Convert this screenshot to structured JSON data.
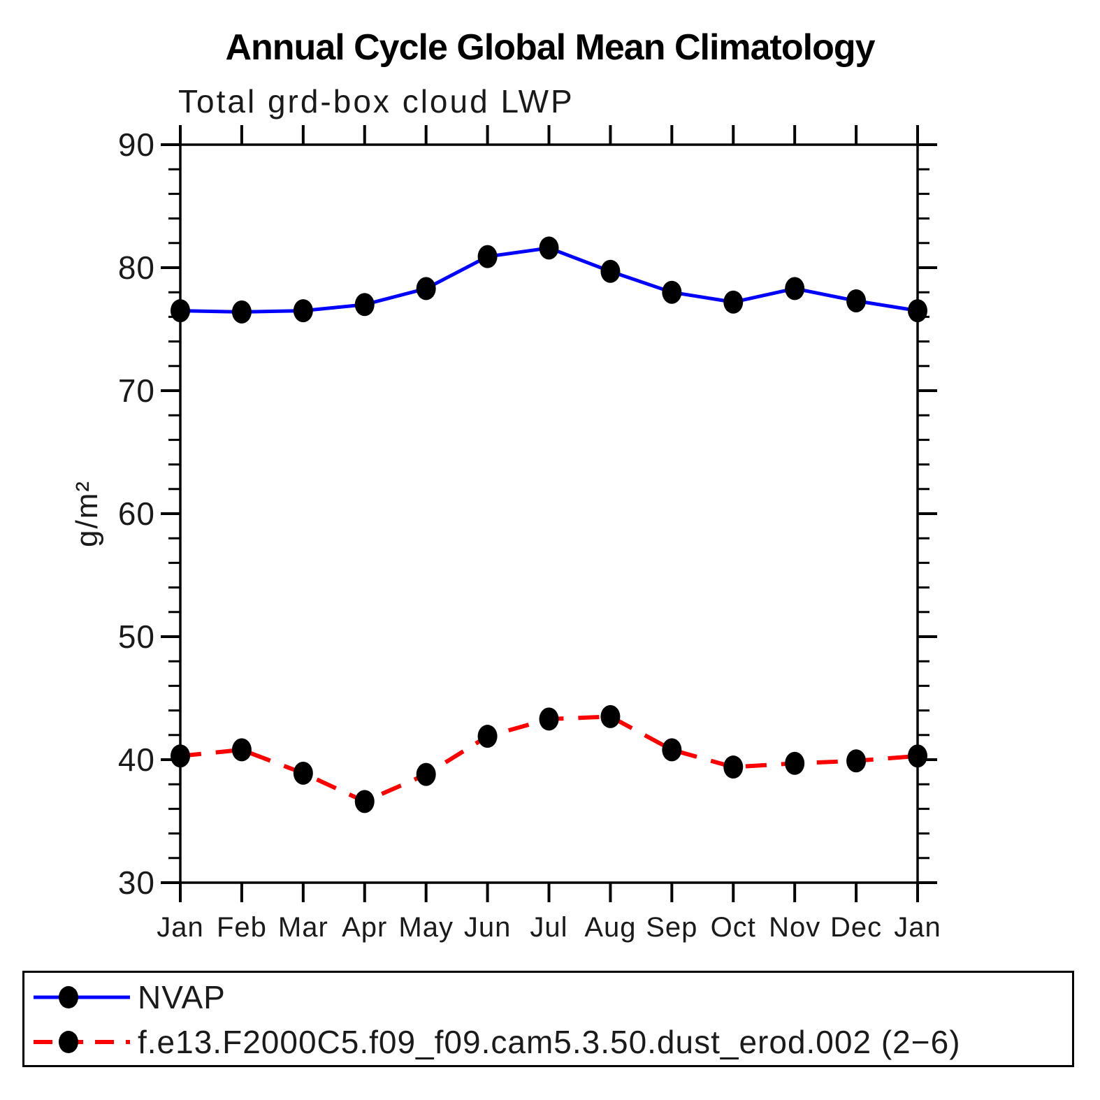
{
  "page": {
    "background": "#ffffff",
    "text_color": "#000000"
  },
  "chart_data": {
    "type": "line",
    "title": "Annual Cycle Global Mean Climatology",
    "subtitle": "Total grd-box cloud LWP",
    "ylabel": "g/m²",
    "categories": [
      "Jan",
      "Feb",
      "Mar",
      "Apr",
      "May",
      "Jun",
      "Jul",
      "Aug",
      "Sep",
      "Oct",
      "Nov",
      "Dec",
      "Jan"
    ],
    "ylim": [
      30,
      90
    ],
    "ytick_major": 10,
    "ytick_minor": 2,
    "ytick_major_labels": [
      "30",
      "40",
      "50",
      "60",
      "70",
      "80",
      "90"
    ],
    "grid": false,
    "legend_position": "bottom-box",
    "marker": {
      "shape": "filled-circle",
      "color": "#000000"
    },
    "axis_color": "#000000",
    "series": [
      {
        "name": "NVAP",
        "color": "#0000ff",
        "line_style": "solid",
        "values": [
          76.5,
          76.4,
          76.5,
          77.0,
          78.3,
          80.9,
          81.6,
          79.7,
          78.0,
          77.2,
          78.3,
          77.3,
          76.5
        ]
      },
      {
        "name": "f.e13.F2000C5.f09_f09.cam5.3.50.dust_erod.002 (2−6)",
        "color": "#ff0000",
        "line_style": "dashed",
        "values": [
          40.3,
          40.8,
          38.9,
          36.6,
          38.8,
          41.9,
          43.3,
          43.5,
          40.8,
          39.4,
          39.7,
          39.9,
          40.3
        ]
      }
    ]
  }
}
